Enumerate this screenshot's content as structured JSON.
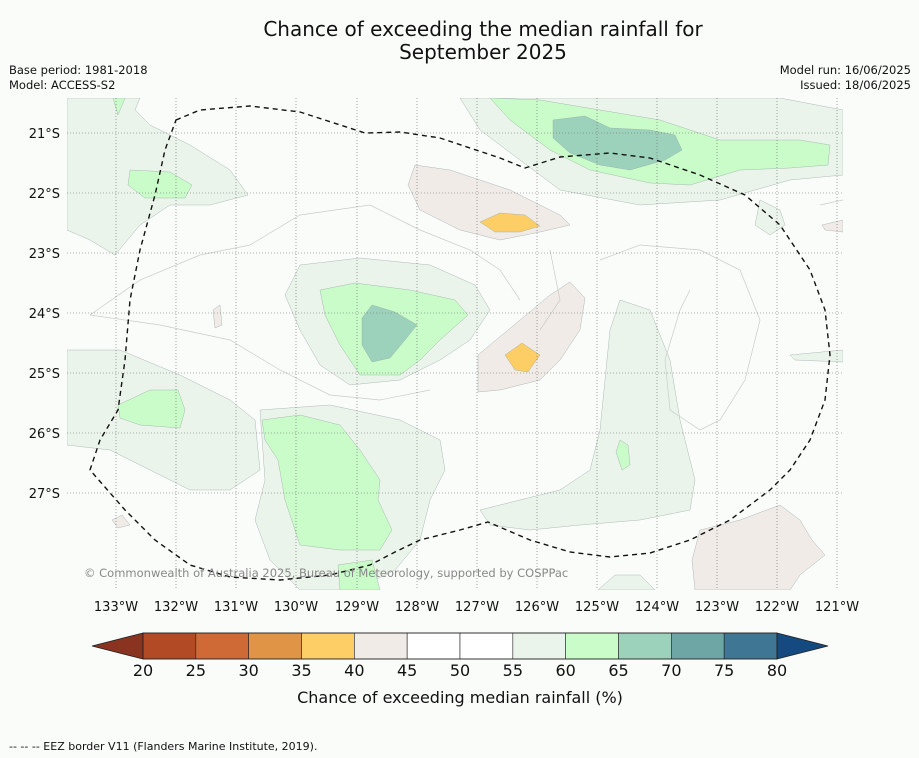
{
  "title_line1": "Chance of exceeding the median rainfall for",
  "title_line2": "September 2025",
  "base_period": "Base period: 1981-2018",
  "model": "Model: ACCESS-S2",
  "model_run": "Model run: 16/06/2025",
  "issued": "Issued: 18/06/2025",
  "copyright": "© Commonwealth of Australia 2025, Bureau of Meteorology, supported by COSPPac",
  "lat_labels": [
    "21°S",
    "22°S",
    "23°S",
    "24°S",
    "25°S",
    "26°S",
    "27°S"
  ],
  "lon_labels": [
    "133°W",
    "132°W",
    "131°W",
    "130°W",
    "129°W",
    "128°W",
    "127°W",
    "126°W",
    "125°W",
    "124°W",
    "123°W",
    "122°W",
    "121°W"
  ],
  "colorbar": {
    "ticks": [
      "20",
      "25",
      "30",
      "35",
      "40",
      "45",
      "50",
      "55",
      "60",
      "65",
      "70",
      "75",
      "80"
    ],
    "colors": [
      "#b24a26",
      "#cf6a37",
      "#e09446",
      "#fdcd66",
      "#f0ebe6",
      "#ffffff",
      "#ffffff",
      "#ebf4ea",
      "#c9fcc8",
      "#9cd2bc",
      "#6ea6a6",
      "#3f7693"
    ],
    "low_extend_color": "#8a3320",
    "high_extend_color": "#154a80",
    "label": "Chance of exceeding median rainfall (%)"
  },
  "legend": "--  --  -- EEZ border V11 (Flanders Marine Institute, 2019).",
  "map_colors": {
    "c55_60": "#ebf4ea",
    "c60_65": "#c9fcc8",
    "c65_70": "#9cd2bc",
    "c40_45": "#f0ebe6",
    "c35_40": "#fdcd66",
    "plain": "#fafcfa"
  }
}
